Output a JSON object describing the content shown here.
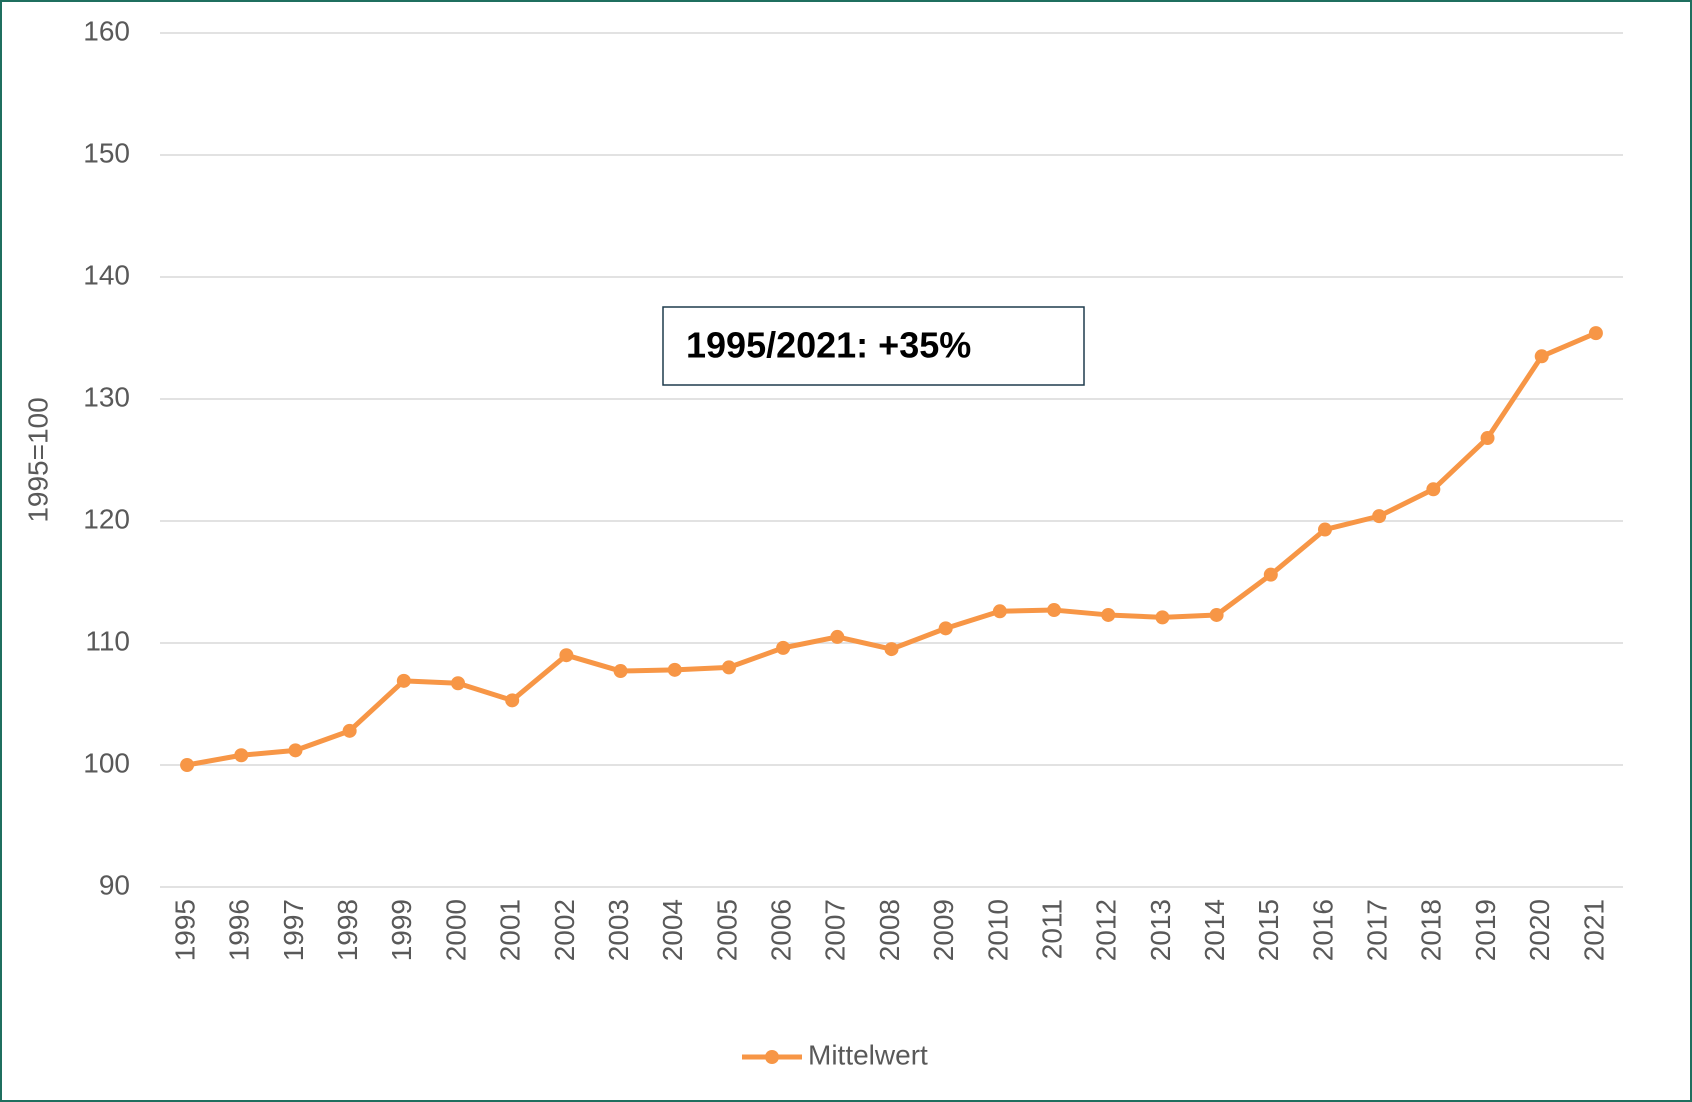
{
  "chart_data": {
    "type": "line",
    "y_label": "1995=100",
    "annotation": "1995/2021: +35%",
    "categories": [
      "1995",
      "1996",
      "1997",
      "1998",
      "1999",
      "2000",
      "2001",
      "2002",
      "2003",
      "2004",
      "2005",
      "2006",
      "2007",
      "2008",
      "2009",
      "2010",
      "2011",
      "2012",
      "2013",
      "2014",
      "2015",
      "2016",
      "2017",
      "2018",
      "2019",
      "2020",
      "2021"
    ],
    "series": [
      {
        "name": "Mittelwert",
        "color": "#f79646",
        "values": [
          100,
          100.8,
          101.2,
          102.8,
          106.9,
          106.7,
          105.3,
          109.0,
          107.7,
          107.8,
          108.0,
          109.6,
          110.5,
          109.5,
          111.2,
          112.6,
          112.7,
          112.3,
          112.1,
          112.3,
          115.6,
          119.3,
          120.4,
          122.6,
          126.8,
          133.5,
          135.4
        ]
      }
    ],
    "ylim": [
      90,
      160
    ],
    "yticks": [
      90,
      100,
      110,
      120,
      130,
      140,
      150,
      160
    ],
    "grid": true,
    "legend": "bottom"
  }
}
